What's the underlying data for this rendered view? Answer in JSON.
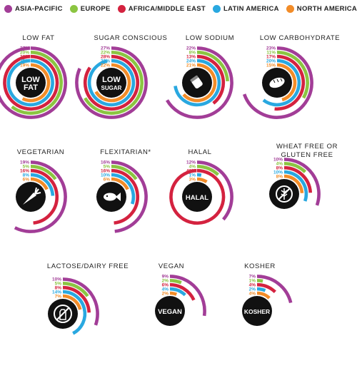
{
  "legend": [
    {
      "label": "ASIA-PACIFIC",
      "color": "#a23d97"
    },
    {
      "label": "EUROPE",
      "color": "#8bc541"
    },
    {
      "label": "AFRICA/MIDDLE EAST",
      "color": "#d4223f"
    },
    {
      "label": "LATIN AMERICA",
      "color": "#29a8e0"
    },
    {
      "label": "NORTH AMERICA",
      "color": "#f28c28"
    }
  ],
  "chart_data": [
    {
      "type": "radial-bar",
      "title": "LOW FAT",
      "badge_text": [
        "LOW",
        "FAT"
      ],
      "icon": "",
      "categories": [
        "Asia-Pacific",
        "Europe",
        "Africa/Middle East",
        "Latin America",
        "North America"
      ],
      "values": [
        37,
        20,
        36,
        39,
        19
      ],
      "labels": [
        "37%",
        "20%",
        "36%",
        "39%",
        "19%"
      ]
    },
    {
      "type": "radial-bar",
      "title": "SUGAR CONSCIOUS",
      "badge_text": [
        "LOW",
        "SUGAR"
      ],
      "icon": "",
      "categories": [
        "Asia-Pacific",
        "Europe",
        "Africa/Middle East",
        "Latin America",
        "North America"
      ],
      "values": [
        27,
        22,
        28,
        32,
        22
      ],
      "labels": [
        "27%",
        "22%",
        "28%",
        "32%",
        "22%"
      ]
    },
    {
      "type": "radial-bar",
      "title": "LOW SODIUM",
      "badge_text": [],
      "icon": "salt-shaker-icon",
      "categories": [
        "Asia-Pacific",
        "Europe",
        "Africa/Middle East",
        "Latin America",
        "North America"
      ],
      "values": [
        22,
        8,
        13,
        24,
        21
      ],
      "labels": [
        "22%",
        "8%",
        "13%",
        "24%",
        "21%"
      ]
    },
    {
      "type": "radial-bar",
      "title": "LOW CARBOHYDRATE",
      "badge_text": [],
      "icon": "bread-icon",
      "categories": [
        "Asia-Pacific",
        "Europe",
        "Africa/Middle East",
        "Latin America",
        "North America"
      ],
      "values": [
        23,
        11,
        17,
        20,
        15
      ],
      "labels": [
        "23%",
        "11%",
        "17%",
        "20%",
        "15%"
      ]
    },
    {
      "type": "radial-bar",
      "title": "VEGETARIAN",
      "badge_text": [],
      "icon": "carrot-icon",
      "categories": [
        "Asia-Pacific",
        "Europe",
        "Africa/Middle East",
        "Latin America",
        "North America"
      ],
      "values": [
        19,
        5,
        16,
        8,
        6
      ],
      "labels": [
        "19%",
        "5%",
        "16%",
        "8%",
        "6%"
      ]
    },
    {
      "type": "radial-bar",
      "title": "FLEXITARIAN*",
      "badge_text": [],
      "icon": "fish-icon",
      "categories": [
        "Asia-Pacific",
        "Europe",
        "Africa/Middle East",
        "Latin America",
        "North America"
      ],
      "values": [
        16,
        5,
        16,
        10,
        6
      ],
      "labels": [
        "16%",
        "5%",
        "16%",
        "10%",
        "6%"
      ]
    },
    {
      "type": "radial-bar",
      "title": "HALAL",
      "badge_text": [
        "HALAL"
      ],
      "icon": "",
      "categories": [
        "Asia-Pacific",
        "Europe",
        "Africa/Middle East",
        "Latin America",
        "North America"
      ],
      "values": [
        12,
        4,
        48,
        1,
        3
      ],
      "labels": [
        "12%",
        "4%",
        "48%",
        "1%",
        "3%"
      ]
    },
    {
      "type": "radial-bar",
      "title": "WHEAT FREE OR GLUTEN FREE",
      "badge_text": [],
      "icon": "no-wheat-icon",
      "categories": [
        "Asia-Pacific",
        "Europe",
        "Africa/Middle East",
        "Latin America",
        "North America"
      ],
      "values": [
        10,
        4,
        8,
        10,
        8
      ],
      "labels": [
        "10%",
        "4%",
        "8%",
        "10%",
        "8%"
      ]
    },
    {
      "type": "radial-bar",
      "title": "LACTOSE/DAIRY FREE",
      "badge_text": [],
      "icon": "no-milk-icon",
      "categories": [
        "Asia-Pacific",
        "Europe",
        "Africa/Middle East",
        "Latin America",
        "North America"
      ],
      "values": [
        10,
        5,
        8,
        14,
        7
      ],
      "labels": [
        "10%",
        "5%",
        "8%",
        "14%",
        "7%"
      ]
    },
    {
      "type": "radial-bar",
      "title": "VEGAN",
      "badge_text": [
        "VEGAN"
      ],
      "icon": "",
      "categories": [
        "Asia-Pacific",
        "Europe",
        "Africa/Middle East",
        "Latin America",
        "North America"
      ],
      "values": [
        9,
        2,
        6,
        4,
        2
      ],
      "labels": [
        "9%",
        "2%",
        "6%",
        "4%",
        "2%"
      ]
    },
    {
      "type": "radial-bar",
      "title": "KOSHER",
      "badge_text": [
        "KOSHER"
      ],
      "icon": "",
      "categories": [
        "Asia-Pacific",
        "Europe",
        "Africa/Middle East",
        "Latin America",
        "North America"
      ],
      "values": [
        7,
        1,
        4,
        2,
        4
      ],
      "labels": [
        "7%",
        "1%",
        "4%",
        "2%",
        "4%"
      ]
    }
  ]
}
